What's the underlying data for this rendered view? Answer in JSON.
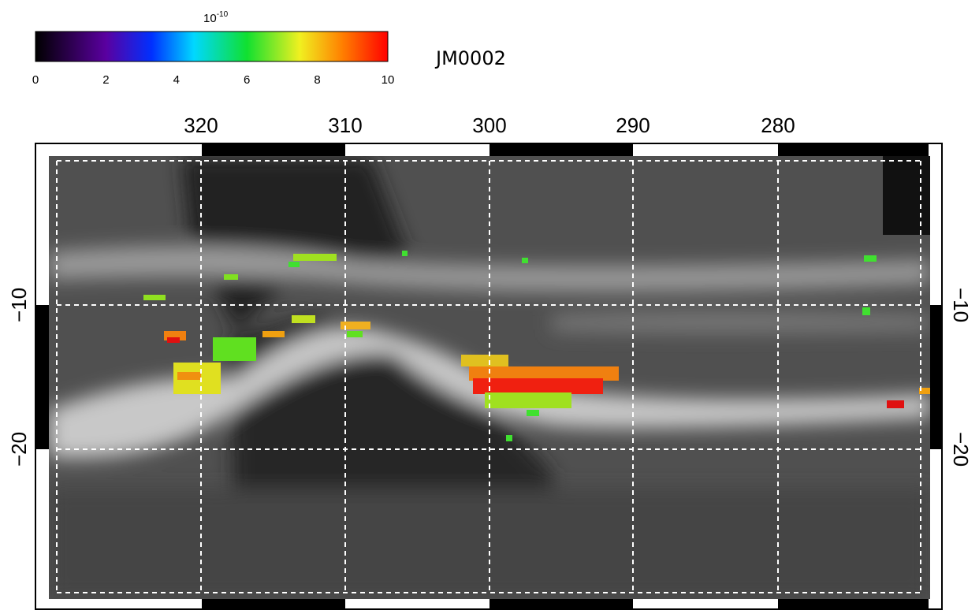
{
  "colorbar": {
    "scale_base": "10",
    "scale_exponent": "-10",
    "ticks": [
      "0",
      "2",
      "4",
      "6",
      "8",
      "10"
    ]
  },
  "title": "JM0002",
  "map": {
    "longitude_ticks": [
      "320",
      "310",
      "300",
      "290",
      "280"
    ],
    "latitude_ticks": [
      "−10",
      "−20"
    ]
  }
}
